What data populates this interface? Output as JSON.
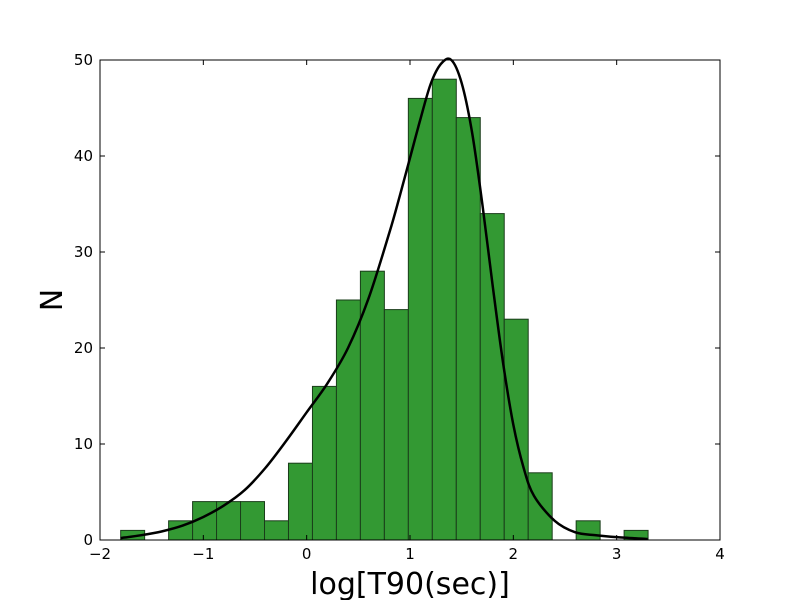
{
  "chart_data": {
    "type": "bar",
    "xlabel": "log[T90(sec)]",
    "ylabel": "N",
    "xlim": [
      -2,
      4
    ],
    "ylim": [
      0,
      50
    ],
    "xticks": [
      -2,
      -1,
      0,
      1,
      2,
      3,
      4
    ],
    "xtick_labels": [
      "−2",
      "−1",
      "0",
      "1",
      "2",
      "3",
      "4"
    ],
    "yticks": [
      0,
      10,
      20,
      30,
      40,
      50
    ],
    "ytick_labels": [
      "0",
      "10",
      "20",
      "30",
      "40",
      "50"
    ],
    "grid": false,
    "bin_width": 0.232,
    "bin_starts": [
      -1.8,
      -1.336,
      -1.104,
      -0.872,
      -0.64,
      -0.408,
      -0.176,
      0.056,
      0.288,
      0.52,
      0.752,
      0.984,
      1.216,
      1.448,
      1.68,
      1.912,
      2.144,
      2.608,
      3.072
    ],
    "values": [
      1,
      2,
      4,
      4,
      4,
      2,
      8,
      16,
      25,
      28,
      24,
      46,
      48,
      44,
      34,
      23,
      7,
      2,
      1
    ],
    "bar_color": "#339933",
    "bar_edge_color": "#1a3d1a",
    "curve_color": "#000000",
    "curve": {
      "x": [
        -1.8,
        -1.6,
        -1.4,
        -1.2,
        -1.0,
        -0.8,
        -0.6,
        -0.4,
        -0.2,
        0.0,
        0.2,
        0.4,
        0.6,
        0.8,
        0.9,
        1.0,
        1.1,
        1.2,
        1.3,
        1.4,
        1.5,
        1.6,
        1.7,
        1.8,
        1.9,
        2.0,
        2.1,
        2.2,
        2.4,
        2.6,
        2.8,
        3.0,
        3.3
      ],
      "y": [
        0.2,
        0.5,
        0.9,
        1.5,
        2.4,
        3.6,
        5.2,
        7.5,
        10.3,
        13.3,
        16.3,
        20.0,
        25.2,
        32.0,
        35.8,
        39.8,
        43.8,
        47.5,
        49.6,
        50.0,
        47.6,
        42.5,
        35.0,
        26.5,
        18.5,
        12.0,
        7.5,
        4.6,
        2.0,
        0.8,
        0.5,
        0.3,
        0.1
      ]
    }
  }
}
